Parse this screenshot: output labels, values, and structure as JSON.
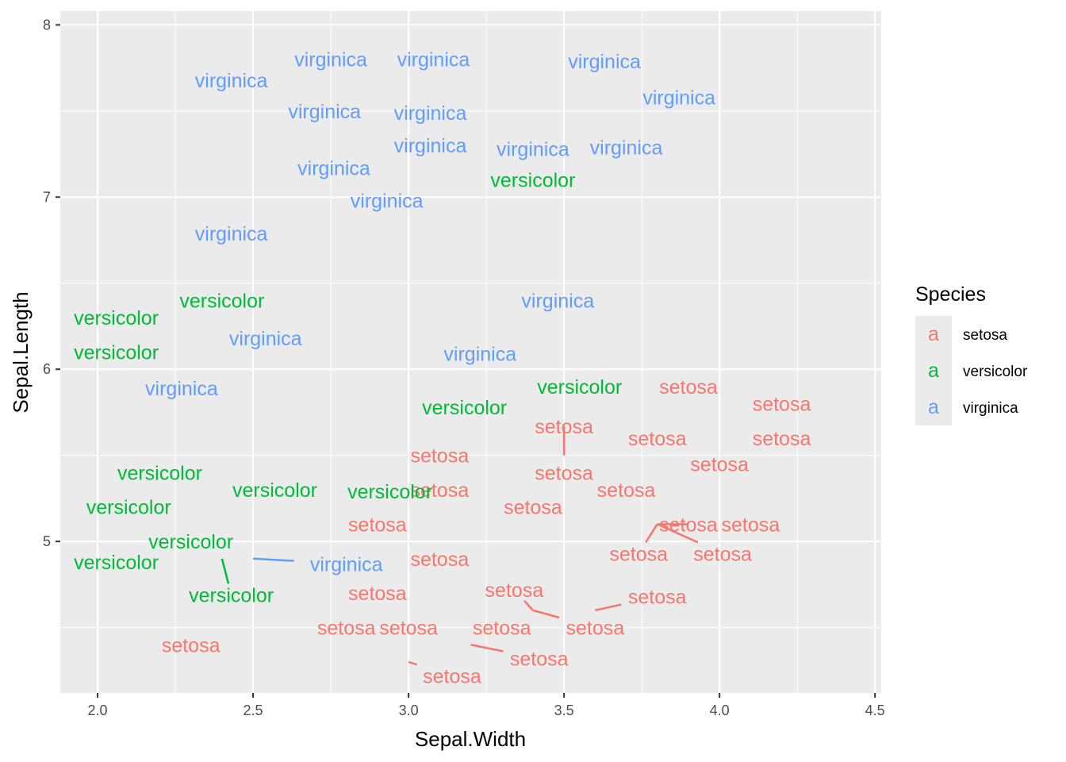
{
  "chart_data": {
    "type": "scatter",
    "xlabel": "Sepal.Width",
    "ylabel": "Sepal.Length",
    "xlim": [
      1.88,
      4.52
    ],
    "ylim": [
      4.12,
      8.08
    ],
    "x_ticks": [
      2.0,
      2.5,
      3.0,
      3.5,
      4.0,
      4.5
    ],
    "x_tick_labels": [
      "2.0",
      "2.5",
      "3.0",
      "3.5",
      "4.0",
      "4.5"
    ],
    "y_ticks": [
      5,
      6,
      7,
      8
    ],
    "y_tick_labels": [
      "5",
      "6",
      "7",
      "8"
    ],
    "grid": true,
    "legend": {
      "title": "Species",
      "placement": "right",
      "key_glyph": "a",
      "entries": [
        {
          "name": "setosa",
          "color": "#F8766D"
        },
        {
          "name": "versicolor",
          "color": "#00BA38"
        },
        {
          "name": "virginica",
          "color": "#619CFF"
        }
      ]
    },
    "series": [
      {
        "name": "setosa",
        "color": "#F8766D",
        "points": [
          {
            "x": 3.9,
            "y": 5.9,
            "label": "setosa"
          },
          {
            "x": 4.2,
            "y": 5.8,
            "label": "setosa"
          },
          {
            "x": 3.5,
            "y": 5.5,
            "label": "setosa",
            "lx": 3.5,
            "ly": 5.67
          },
          {
            "x": 3.8,
            "y": 5.6,
            "label": "setosa"
          },
          {
            "x": 4.2,
            "y": 5.6,
            "label": "setosa"
          },
          {
            "x": 3.1,
            "y": 5.5,
            "label": "setosa"
          },
          {
            "x": 4.0,
            "y": 5.45,
            "label": "setosa"
          },
          {
            "x": 3.5,
            "y": 5.4,
            "label": "setosa"
          },
          {
            "x": 3.1,
            "y": 5.3,
            "label": "setosa"
          },
          {
            "x": 3.7,
            "y": 5.3,
            "label": "setosa"
          },
          {
            "x": 3.4,
            "y": 5.2,
            "label": "setosa"
          },
          {
            "x": 2.9,
            "y": 5.1,
            "label": "setosa"
          },
          {
            "x": 3.8,
            "y": 5.1,
            "label": "setosa",
            "lx": 3.9,
            "ly": 5.1
          },
          {
            "x": 4.1,
            "y": 5.1,
            "label": "setosa"
          },
          {
            "x": 3.8,
            "y": 5.1,
            "label": "setosa",
            "lx": 3.74,
            "ly": 4.93
          },
          {
            "x": 3.8,
            "y": 5.1,
            "label": "setosa",
            "lx": 4.01,
            "ly": 4.93
          },
          {
            "x": 3.1,
            "y": 4.9,
            "label": "setosa"
          },
          {
            "x": 2.9,
            "y": 4.7,
            "label": "setosa"
          },
          {
            "x": 3.4,
            "y": 4.6,
            "label": "setosa",
            "lx": 3.34,
            "ly": 4.72
          },
          {
            "x": 3.6,
            "y": 4.6,
            "label": "setosa",
            "lx": 3.8,
            "ly": 4.68
          },
          {
            "x": 2.3,
            "y": 4.4,
            "label": "setosa"
          },
          {
            "x": 2.8,
            "y": 4.5,
            "label": "setosa"
          },
          {
            "x": 3.0,
            "y": 4.5,
            "label": "setosa"
          },
          {
            "x": 3.3,
            "y": 4.5,
            "label": "setosa"
          },
          {
            "x": 3.4,
            "y": 4.6,
            "label": "setosa",
            "lx": 3.6,
            "ly": 4.5
          },
          {
            "x": 3.2,
            "y": 4.4,
            "label": "setosa",
            "lx": 3.42,
            "ly": 4.32
          },
          {
            "x": 3.0,
            "y": 4.3,
            "label": "setosa",
            "lx": 3.14,
            "ly": 4.22
          }
        ]
      },
      {
        "name": "versicolor",
        "color": "#00BA38",
        "points": [
          {
            "x": 3.4,
            "y": 7.1,
            "label": "versicolor"
          },
          {
            "x": 2.4,
            "y": 6.4,
            "label": "versicolor"
          },
          {
            "x": 2.06,
            "y": 6.3,
            "label": "versicolor"
          },
          {
            "x": 2.06,
            "y": 6.1,
            "label": "versicolor"
          },
          {
            "x": 3.55,
            "y": 5.9,
            "label": "versicolor"
          },
          {
            "x": 3.18,
            "y": 5.78,
            "label": "versicolor"
          },
          {
            "x": 2.2,
            "y": 5.4,
            "label": "versicolor"
          },
          {
            "x": 2.57,
            "y": 5.3,
            "label": "versicolor"
          },
          {
            "x": 2.94,
            "y": 5.29,
            "label": "versicolor"
          },
          {
            "x": 2.1,
            "y": 5.2,
            "label": "versicolor"
          },
          {
            "x": 2.3,
            "y": 5.0,
            "label": "versicolor",
            "lx": 2.3,
            "ly": 5.0
          },
          {
            "x": 2.06,
            "y": 4.88,
            "label": "versicolor"
          },
          {
            "x": 2.4,
            "y": 4.9,
            "label": "versicolor",
            "lx": 2.43,
            "ly": 4.69
          }
        ]
      },
      {
        "name": "virginica",
        "color": "#619CFF",
        "points": [
          {
            "x": 2.75,
            "y": 7.8,
            "label": "virginica"
          },
          {
            "x": 3.08,
            "y": 7.8,
            "label": "virginica"
          },
          {
            "x": 3.63,
            "y": 7.79,
            "label": "virginica"
          },
          {
            "x": 2.43,
            "y": 7.68,
            "label": "virginica"
          },
          {
            "x": 3.87,
            "y": 7.58,
            "label": "virginica"
          },
          {
            "x": 2.73,
            "y": 7.5,
            "label": "virginica"
          },
          {
            "x": 3.07,
            "y": 7.49,
            "label": "virginica"
          },
          {
            "x": 3.07,
            "y": 7.3,
            "label": "virginica"
          },
          {
            "x": 3.4,
            "y": 7.28,
            "label": "virginica"
          },
          {
            "x": 3.7,
            "y": 7.29,
            "label": "virginica"
          },
          {
            "x": 2.76,
            "y": 7.17,
            "label": "virginica"
          },
          {
            "x": 2.93,
            "y": 6.98,
            "label": "virginica"
          },
          {
            "x": 2.43,
            "y": 6.79,
            "label": "virginica"
          },
          {
            "x": 3.48,
            "y": 6.4,
            "label": "virginica"
          },
          {
            "x": 2.54,
            "y": 6.18,
            "label": "virginica"
          },
          {
            "x": 3.23,
            "y": 6.09,
            "label": "virginica"
          },
          {
            "x": 2.27,
            "y": 5.89,
            "label": "virginica"
          },
          {
            "x": 2.5,
            "y": 4.9,
            "label": "virginica",
            "lx": 2.8,
            "ly": 4.87
          }
        ]
      }
    ]
  }
}
